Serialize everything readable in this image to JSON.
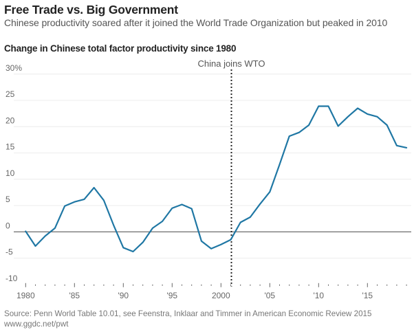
{
  "header": {
    "title": "Free Trade vs. Big Government",
    "subtitle": "Chinese productivity soared after it joined the World Trade Organization but peaked in 2010"
  },
  "footer": {
    "source_line1": "Source: Penn World Table 10.01, see Feenstra, Inklaar and Timmer in American Economic Review 2015",
    "source_line2": "www.ggdc.net/pwt"
  },
  "chart_data": {
    "type": "line",
    "title": "Change in Chinese total factor productivity since 1980",
    "xlabel": "",
    "ylabel": "",
    "ylim": [
      -10,
      30
    ],
    "xlim": [
      1980,
      2019
    ],
    "grid": true,
    "y_ticks": [
      30,
      25,
      20,
      15,
      10,
      5,
      0,
      -5,
      -10
    ],
    "y_tick_labels": [
      "30%",
      "25",
      "20",
      "15",
      "10",
      "5",
      "0",
      "-5",
      "-10"
    ],
    "x_ticks": [
      1980,
      1985,
      1990,
      1995,
      2000,
      2005,
      2010,
      2015
    ],
    "x_tick_labels": [
      "1980",
      "'85",
      "'90",
      "'95",
      "2000",
      "'05",
      "'10",
      "'15"
    ],
    "annotation": {
      "x": 2001,
      "label": "China joins WTO",
      "style": "dotted-vertical-line"
    },
    "series": [
      {
        "name": "Change in Chinese TFP",
        "color": "#1f77a4",
        "x": [
          1980,
          1981,
          1982,
          1983,
          1984,
          1985,
          1986,
          1987,
          1988,
          1989,
          1990,
          1991,
          1992,
          1993,
          1994,
          1995,
          1996,
          1997,
          1998,
          1999,
          2000,
          2001,
          2002,
          2003,
          2004,
          2005,
          2006,
          2007,
          2008,
          2009,
          2010,
          2011,
          2012,
          2013,
          2014,
          2015,
          2016,
          2017,
          2018,
          2019
        ],
        "values": [
          0.1,
          -2.7,
          -0.8,
          0.7,
          4.9,
          5.7,
          6.2,
          8.4,
          6.0,
          1.3,
          -3.0,
          -3.75,
          -2.0,
          0.7,
          2.0,
          4.5,
          5.2,
          4.4,
          -1.75,
          -3.2,
          -2.4,
          -1.5,
          1.8,
          2.8,
          5.3,
          7.6,
          12.8,
          18.2,
          18.9,
          20.3,
          23.9,
          23.9,
          20.1,
          21.9,
          23.5,
          22.4,
          21.9,
          20.3,
          16.4,
          16.0
        ]
      }
    ]
  }
}
